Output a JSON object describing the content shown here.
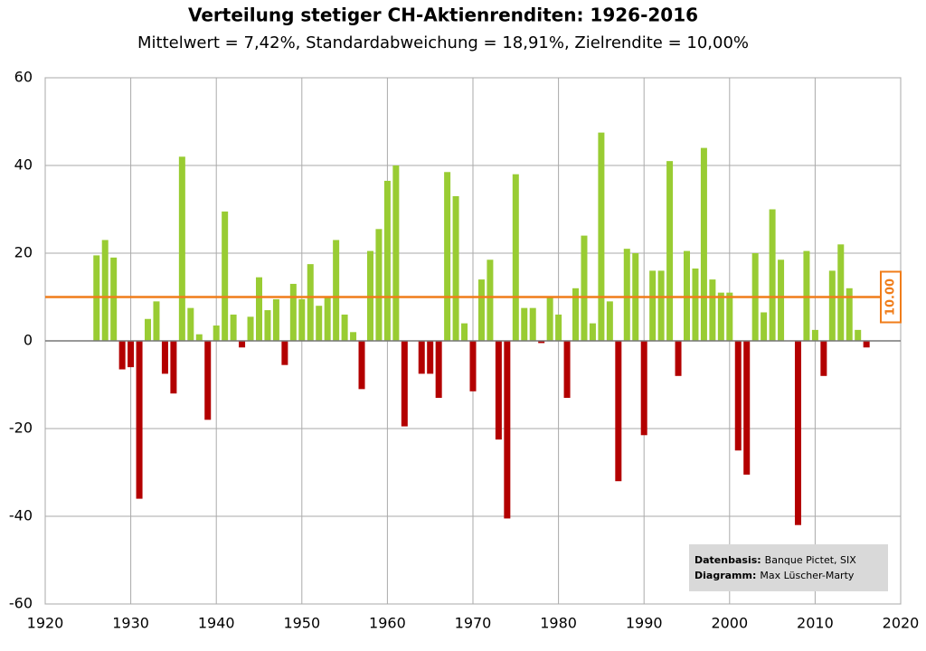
{
  "chart_data": {
    "type": "bar",
    "title": "Verteilung stetiger CH-Aktienrenditen: 1926-2016",
    "subtitle": "Mittelwert = 7,42%, Standardabweichung = 18,91%, Zielrendite = 10,00%",
    "x": [
      1926,
      1927,
      1928,
      1929,
      1930,
      1931,
      1932,
      1933,
      1934,
      1935,
      1936,
      1937,
      1938,
      1939,
      1940,
      1941,
      1942,
      1943,
      1944,
      1945,
      1946,
      1947,
      1948,
      1949,
      1950,
      1951,
      1952,
      1953,
      1954,
      1955,
      1956,
      1957,
      1958,
      1959,
      1960,
      1961,
      1962,
      1963,
      1964,
      1965,
      1966,
      1967,
      1968,
      1969,
      1970,
      1971,
      1972,
      1973,
      1974,
      1975,
      1976,
      1977,
      1978,
      1979,
      1980,
      1981,
      1982,
      1983,
      1984,
      1985,
      1986,
      1987,
      1988,
      1989,
      1990,
      1991,
      1992,
      1993,
      1994,
      1995,
      1996,
      1997,
      1998,
      1999,
      2000,
      2001,
      2002,
      2003,
      2004,
      2005,
      2006,
      2007,
      2008,
      2009,
      2010,
      2011,
      2012,
      2013,
      2014,
      2015,
      2016
    ],
    "values": [
      19.5,
      23,
      19,
      -6.5,
      -6,
      -36,
      5,
      9,
      -7.5,
      -12,
      42,
      7.5,
      1.5,
      -18,
      3.5,
      29.5,
      6,
      -1.5,
      5.5,
      14.5,
      7,
      9.5,
      -5.5,
      13,
      9.5,
      17.5,
      8,
      10,
      23,
      6,
      2,
      -11,
      20.5,
      25.5,
      36.5,
      40,
      -19.5,
      0,
      -7.5,
      -7.5,
      -13,
      38.5,
      33,
      4,
      -11.5,
      14,
      18.5,
      -22.5,
      -40.5,
      38,
      7.5,
      7.5,
      -0.5,
      10,
      6,
      -13,
      12,
      24,
      4,
      47.5,
      9,
      -32,
      21,
      20,
      -21.5,
      16,
      16,
      41,
      -8,
      20.5,
      16.5,
      44,
      14,
      11,
      11,
      -25,
      -30.5,
      20,
      6.5,
      30,
      18.5,
      0,
      -42,
      20.5,
      2.5,
      -8,
      16,
      22,
      12,
      2.5,
      -1.5
    ],
    "color_positive": "#99cc33",
    "color_negative": "#b30000",
    "xlim": [
      1920,
      2020
    ],
    "xticks": [
      1920,
      1930,
      1940,
      1950,
      1960,
      1970,
      1980,
      1990,
      2000,
      2010,
      2020
    ],
    "ylim": [
      -60,
      60
    ],
    "yticks": [
      -60,
      -40,
      -20,
      0,
      20,
      40,
      60
    ],
    "grid": true,
    "target": {
      "value": 10,
      "label": "10.00",
      "color": "#f07d1a"
    },
    "source": [
      {
        "label": "Datenbasis:",
        "text": "Banque Pictet, SIX"
      },
      {
        "label": "Diagramm:",
        "text": "Max Lüscher-Marty"
      }
    ]
  }
}
